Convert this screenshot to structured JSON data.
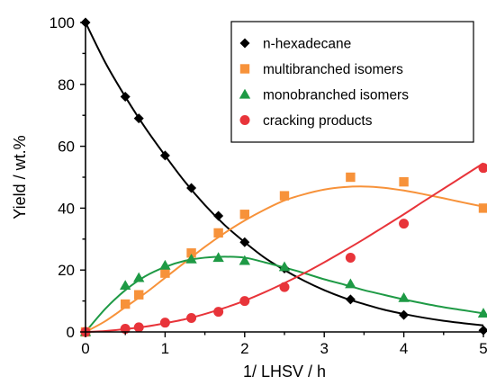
{
  "chart_data": {
    "type": "scatter",
    "xlabel": "1/ LHSV  /  h",
    "ylabel": "Yield  /  wt.%",
    "xlim": [
      0,
      5
    ],
    "ylim": [
      0,
      100
    ],
    "x_ticks": [
      0,
      1,
      2,
      3,
      4,
      5
    ],
    "y_ticks": [
      0,
      20,
      40,
      60,
      80,
      100
    ],
    "x_tick_labels": [
      "0",
      "1",
      "2",
      "3",
      "4",
      "5"
    ],
    "y_tick_labels": [
      "0",
      "20",
      "40",
      "60",
      "80",
      "100"
    ],
    "grid": false,
    "legend_position": "top-right",
    "series": [
      {
        "name": "n-hexadecane",
        "marker": "diamond",
        "color": "#000000",
        "line_color": "#000000",
        "x": [
          0,
          0.5,
          0.67,
          1.0,
          1.33,
          1.67,
          2.0,
          2.5,
          3.33,
          4.0,
          5.0
        ],
        "y": [
          100,
          76,
          69,
          57,
          46.5,
          37.5,
          29,
          20.5,
          10.5,
          5.5,
          0.5
        ],
        "fit_x": [
          0,
          0.25,
          0.5,
          0.75,
          1.0,
          1.25,
          1.5,
          1.75,
          2.0,
          2.25,
          2.5,
          2.75,
          3.0,
          3.25,
          3.5,
          3.75,
          4.0,
          4.25,
          4.5,
          4.75,
          5.0
        ],
        "fit_y": [
          100,
          87,
          76,
          66,
          57,
          48.5,
          41,
          34.5,
          29,
          24,
          20,
          16.5,
          13.5,
          11,
          9,
          7.2,
          5.8,
          4.6,
          3.6,
          2.8,
          2.1
        ]
      },
      {
        "name": "multibranched isomers",
        "marker": "square",
        "color": "#f7923a",
        "line_color": "#f7923a",
        "x": [
          0,
          0.5,
          0.67,
          1.0,
          1.33,
          1.67,
          2.0,
          2.5,
          3.33,
          4.0,
          5.0
        ],
        "y": [
          0,
          9,
          12,
          19,
          25.5,
          32,
          38,
          44,
          50,
          48.5,
          40
        ],
        "fit_x": [
          0,
          0.25,
          0.5,
          0.75,
          1.0,
          1.25,
          1.5,
          1.75,
          2.0,
          2.25,
          2.5,
          2.75,
          3.0,
          3.25,
          3.5,
          3.75,
          4.0,
          4.25,
          4.5,
          4.75,
          5.0
        ],
        "fit_y": [
          0,
          3.5,
          8,
          12.5,
          17.5,
          22.5,
          27.5,
          32,
          36,
          39.5,
          42.5,
          44.5,
          46,
          46.8,
          47,
          46.6,
          45.7,
          44.5,
          43.2,
          41.8,
          40.5
        ]
      },
      {
        "name": "monobranched isomers",
        "marker": "triangle",
        "color": "#1e9a45",
        "line_color": "#1e9a45",
        "x": [
          0,
          0.5,
          0.67,
          1.0,
          1.33,
          1.67,
          2.0,
          2.5,
          3.33,
          4.0,
          5.0
        ],
        "y": [
          0,
          15,
          17.5,
          21.5,
          23.5,
          24,
          23,
          21,
          15.5,
          11,
          6
        ],
        "fit_x": [
          0,
          0.25,
          0.5,
          0.75,
          1.0,
          1.25,
          1.5,
          1.75,
          2.0,
          2.25,
          2.5,
          2.75,
          3.0,
          3.25,
          3.5,
          3.75,
          4.0,
          4.25,
          4.5,
          4.75,
          5.0
        ],
        "fit_y": [
          0,
          7.5,
          13.5,
          18,
          21,
          23,
          24,
          24.3,
          24,
          22.5,
          20.8,
          19,
          17,
          15.3,
          13.5,
          12,
          10.5,
          9.2,
          8,
          7,
          6
        ]
      },
      {
        "name": "cracking products",
        "marker": "circle",
        "color": "#e8343a",
        "line_color": "#e8343a",
        "x": [
          0,
          0.5,
          0.67,
          1.0,
          1.33,
          1.67,
          2.0,
          2.5,
          3.33,
          4.0,
          5.0
        ],
        "y": [
          0,
          1,
          1.5,
          3,
          4.5,
          6.5,
          10,
          14.5,
          24,
          35,
          53
        ],
        "fit_x": [
          0,
          0.25,
          0.5,
          0.75,
          1.0,
          1.25,
          1.5,
          1.75,
          2.0,
          2.25,
          2.5,
          2.75,
          3.0,
          3.25,
          3.5,
          3.75,
          4.0,
          4.25,
          4.5,
          4.75,
          5.0
        ],
        "fit_y": [
          0,
          0.3,
          0.9,
          1.7,
          2.8,
          4.1,
          5.8,
          7.8,
          10.1,
          12.8,
          15.8,
          19,
          22.5,
          26.2,
          30,
          34,
          38,
          42.2,
          46.3,
          50.4,
          54.5
        ]
      }
    ]
  }
}
